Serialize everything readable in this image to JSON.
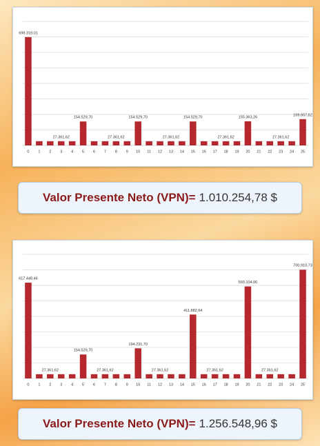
{
  "chart_data": [
    {
      "type": "bar",
      "color": "#b5282e",
      "categories": [
        "0",
        "1",
        "2",
        "3",
        "4",
        "5",
        "6",
        "7",
        "8",
        "9",
        "10",
        "11",
        "12",
        "13",
        "14",
        "15",
        "16",
        "17",
        "18",
        "19",
        "20",
        "21",
        "22",
        "23",
        "24",
        "25"
      ],
      "values": [
        698319.01,
        27361.62,
        27361.62,
        27361.62,
        27361.62,
        154529.7,
        27361.62,
        27361.62,
        27361.62,
        27361.62,
        154529.7,
        27361.62,
        27361.62,
        27361.62,
        27361.62,
        154529.7,
        27361.62,
        27361.62,
        27361.62,
        27361.62,
        155363.26,
        27361.62,
        27361.62,
        27361.62,
        27361.62,
        169607.82
      ],
      "value_labels": [
        "698.319,01",
        null,
        null,
        "27.361,62",
        null,
        "154.529,70",
        null,
        null,
        "27.361,62",
        null,
        "154.529,70",
        null,
        null,
        "27.361,62",
        null,
        "154.529,70",
        null,
        null,
        "27.361,62",
        null,
        "155.363,26",
        null,
        null,
        "27.361,62",
        null,
        "169.607,82"
      ],
      "ylim": [
        0,
        800000
      ],
      "yticks": [
        0,
        100000,
        200000,
        300000,
        400000,
        500000,
        600000,
        700000,
        800000
      ],
      "grid": true,
      "annotation": {
        "label": "Valor Presente Neto (VPN)=",
        "value": "1.010.254,78 $"
      }
    },
    {
      "type": "bar",
      "color": "#b5282e",
      "categories": [
        "0",
        "1",
        "2",
        "3",
        "4",
        "5",
        "6",
        "7",
        "8",
        "9",
        "10",
        "11",
        "12",
        "13",
        "14",
        "15",
        "16",
        "17",
        "18",
        "19",
        "20",
        "21",
        "22",
        "23",
        "24",
        "25"
      ],
      "values": [
        617449.46,
        27361.62,
        27361.62,
        27361.62,
        27361.62,
        154529.7,
        27361.62,
        27361.62,
        27361.62,
        27361.62,
        194231.7,
        27361.62,
        27361.62,
        27361.62,
        27361.62,
        411882.64,
        27361.62,
        27361.62,
        27361.62,
        27361.62,
        593104.06,
        27361.62,
        27361.62,
        27361.62,
        27361.62,
        700910.73
      ],
      "value_labels": [
        "617.449,46",
        null,
        "27.361,62",
        null,
        null,
        "154.529,70",
        null,
        "27.361,62",
        null,
        null,
        "194.231,70",
        null,
        "27.361,62",
        null,
        null,
        "411.882,64",
        null,
        "27.361,62",
        null,
        null,
        "593.104,06",
        null,
        "27.361,62",
        null,
        null,
        "700.910,73"
      ],
      "ylim": [
        0,
        800000
      ],
      "yticks": [
        0,
        100000,
        200000,
        300000,
        400000,
        500000,
        600000,
        700000,
        800000
      ],
      "grid": true,
      "annotation": {
        "label": "Valor Presente Neto (VPN)=",
        "value": "1.256.548,96 $"
      }
    }
  ]
}
